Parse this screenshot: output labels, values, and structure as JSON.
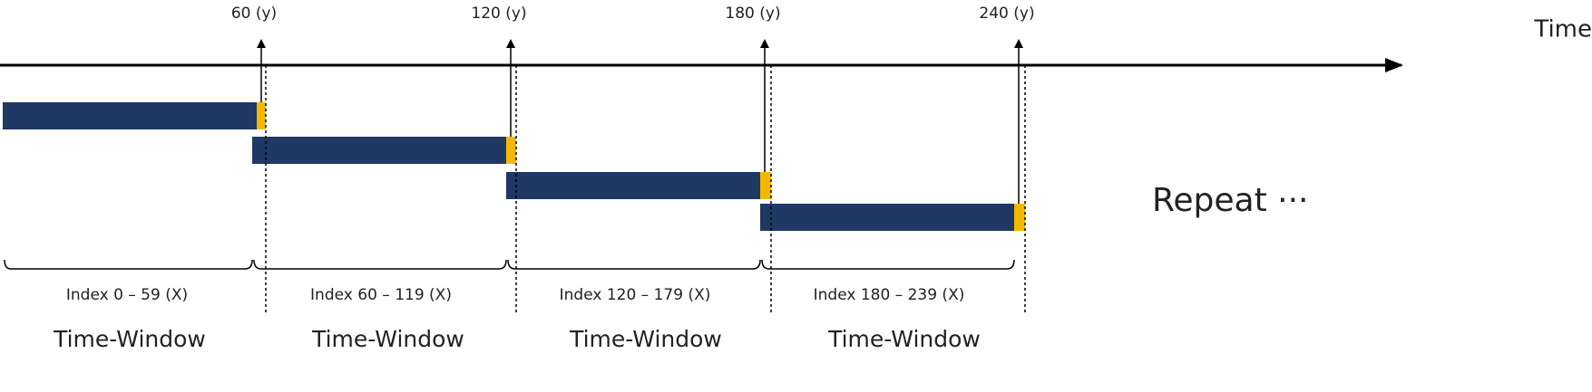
{
  "axis": {
    "label": "Time"
  },
  "markers": [
    "60 (y)",
    "120 (y)",
    "180 (y)",
    "240 (y)"
  ],
  "windows": [
    {
      "index": "Index 0 – 59 (X)",
      "label": "Time-Window"
    },
    {
      "index": "Index 60 – 119 (X)",
      "label": "Time-Window"
    },
    {
      "index": "Index 120 – 179 (X)",
      "label": "Time-Window"
    },
    {
      "index": "Index 180 – 239 (X)",
      "label": "Time-Window"
    }
  ],
  "repeat": "Repeat ···"
}
